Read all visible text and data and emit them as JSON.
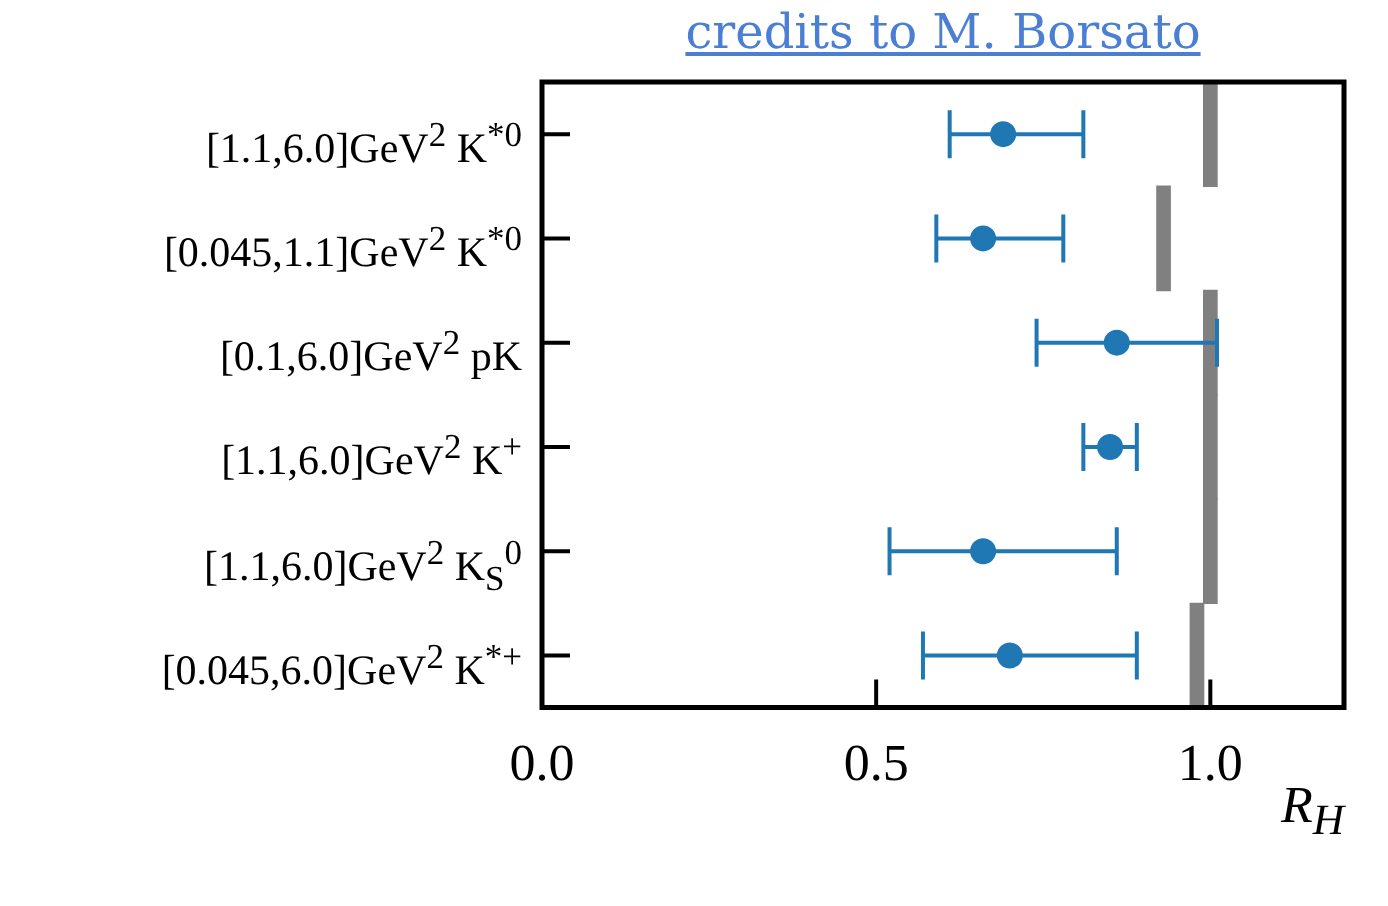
{
  "chart_data": {
    "type": "scatter",
    "orientation": "horizontal",
    "xlabel": "R$_{H}$",
    "annotations": [
      "credits to M. Borsato"
    ],
    "categories": [
      "[1.1,6.0]GeV$^{2}$ K$^{*0}$",
      "[0.045,1.1]GeV$^{2}$ K$^{*0}$",
      "[0.1,6.0]GeV$^{2}$ pK",
      "[1.1,6.0]GeV$^{2}$ K$^{+}$",
      "[1.1,6.0]GeV$^{2}$ K$_{S}$$^{0}$",
      "[0.045,6.0]GeV$^{2}$ K$^{*+}$"
    ],
    "xlim": [
      0,
      1.2
    ],
    "xticks": [
      {
        "value": 0,
        "label": "0.0"
      },
      {
        "value": 0.5,
        "label": "0.5"
      },
      {
        "value": 1,
        "label": "1.0"
      }
    ],
    "series": [
      {
        "type": "bar",
        "color": "#808080",
        "base": [
          0.99,
          0.92,
          0.99,
          0.99,
          0.99,
          0.97
        ],
        "values": [
          0.02,
          0.02,
          0.02,
          0.02,
          0.02,
          0.02
        ]
      },
      {
        "color": "#1f77b4",
        "marker": "circle",
        "values": [
          0.69,
          0.66,
          0.86,
          0.85,
          0.66,
          0.7
        ],
        "errors": [
          [
            0.61,
            0.81
          ],
          [
            0.59,
            0.78
          ],
          [
            0.74,
            1.01
          ],
          [
            0.81,
            0.89
          ],
          [
            0.52,
            0.86
          ],
          [
            0.57,
            0.89
          ]
        ]
      }
    ]
  }
}
